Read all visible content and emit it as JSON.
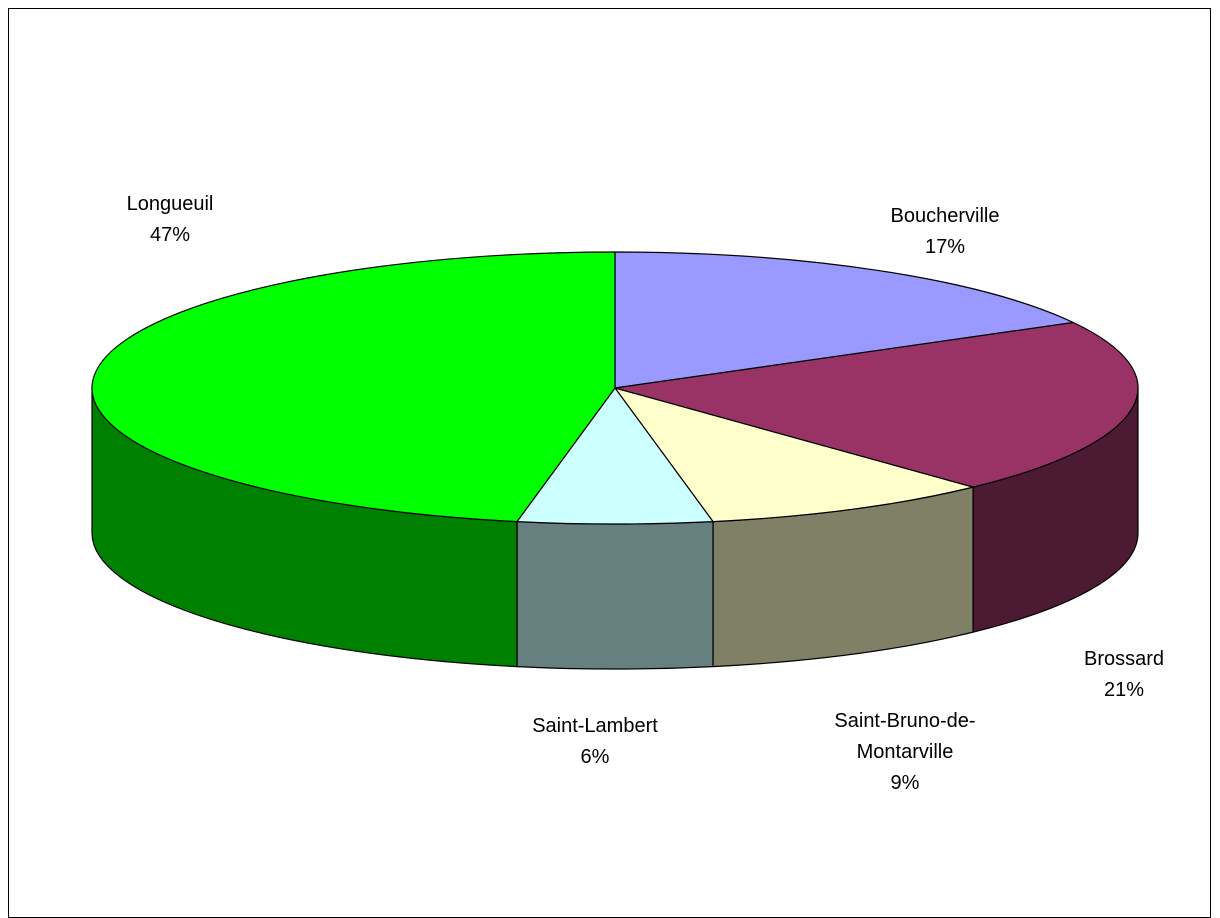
{
  "chart_data": {
    "type": "pie",
    "title": "",
    "style": "3d",
    "slices": [
      {
        "label": "Boucherville",
        "label_lines": [
          "Boucherville"
        ],
        "value": 17,
        "value_label": "17%",
        "color": "#9999ff",
        "side_color": "#6b6bb3"
      },
      {
        "label": "Brossard",
        "label_lines": [
          "Brossard"
        ],
        "value": 21,
        "value_label": "21%",
        "color": "#993366",
        "side_color": "#4d1a33"
      },
      {
        "label": "Saint-Bruno-de-Montarville",
        "label_lines": [
          "Saint-Bruno-de-",
          "Montarville"
        ],
        "value": 9,
        "value_label": "9%",
        "color": "#ffffcc",
        "side_color": "#808066"
      },
      {
        "label": "Saint-Lambert",
        "label_lines": [
          "Saint-Lambert"
        ],
        "value": 6,
        "value_label": "6%",
        "color": "#ccffff",
        "side_color": "#668080"
      },
      {
        "label": "Longueuil",
        "label_lines": [
          "Longueuil"
        ],
        "value": 47,
        "value_label": "47%",
        "color": "#00ff00",
        "side_color": "#008000"
      }
    ]
  }
}
